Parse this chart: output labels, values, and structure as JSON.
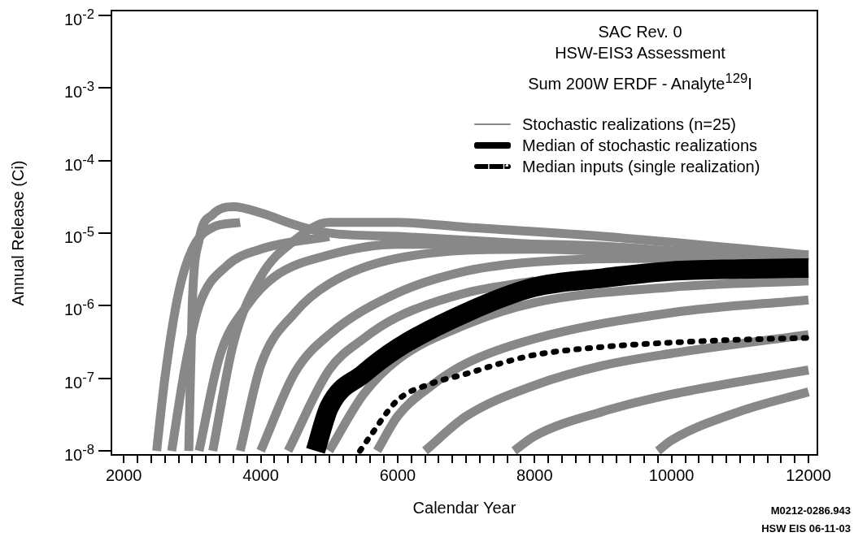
{
  "chart_data": {
    "type": "line",
    "title": "SAC Rev. 0",
    "subtitle": "HSW-EIS3 Assessment",
    "annotations": [
      "Sum 200W ERDF  - Analyte$^{129}$I",
      "M0212-0286.943",
      "HSW EIS 06-11-03"
    ],
    "xlabel": "Calendar Year",
    "ylabel": "Annual Release (Ci)",
    "log": "y",
    "legend": "top right",
    "marker": "none",
    "xlim": [
      1820,
      12130
    ],
    "ylim": [
      8.8e-09,
      0.0116
    ],
    "xticks": [
      2000,
      {
        "value": 2200,
        "label": null
      },
      {
        "value": 2400,
        "label": null
      },
      {
        "value": 2600,
        "label": null
      },
      {
        "value": 2800,
        "label": null
      },
      {
        "value": 3000,
        "label": null
      },
      {
        "value": 3200,
        "label": null
      },
      {
        "value": 3400,
        "label": null
      },
      {
        "value": 3600,
        "label": null
      },
      {
        "value": 3800,
        "label": null
      },
      4000,
      {
        "value": 4200,
        "label": null
      },
      {
        "value": 4400,
        "label": null
      },
      {
        "value": 4600,
        "label": null
      },
      {
        "value": 4800,
        "label": null
      },
      {
        "value": 5000,
        "label": null
      },
      {
        "value": 5200,
        "label": null
      },
      {
        "value": 5400,
        "label": null
      },
      {
        "value": 5600,
        "label": null
      },
      {
        "value": 5800,
        "label": null
      },
      6000,
      {
        "value": 6200,
        "label": null
      },
      {
        "value": 6400,
        "label": null
      },
      {
        "value": 6600,
        "label": null
      },
      {
        "value": 6800,
        "label": null
      },
      {
        "value": 7000,
        "label": null
      },
      {
        "value": 7200,
        "label": null
      },
      {
        "value": 7400,
        "label": null
      },
      {
        "value": 7600,
        "label": null
      },
      {
        "value": 7800,
        "label": null
      },
      8000,
      {
        "value": 8200,
        "label": null
      },
      {
        "value": 8400,
        "label": null
      },
      {
        "value": 8600,
        "label": null
      },
      {
        "value": 8800,
        "label": null
      },
      {
        "value": 9000,
        "label": null
      },
      {
        "value": 9200,
        "label": null
      },
      {
        "value": 9400,
        "label": null
      },
      {
        "value": 9600,
        "label": null
      },
      {
        "value": 9800,
        "label": null
      },
      10000,
      {
        "value": 10200,
        "label": null
      },
      {
        "value": 10400,
        "label": null
      },
      {
        "value": 10600,
        "label": null
      },
      {
        "value": 10800,
        "label": null
      },
      {
        "value": 11000,
        "label": null
      },
      {
        "value": 11200,
        "label": null
      },
      {
        "value": 11400,
        "label": null
      },
      {
        "value": 11600,
        "label": null
      },
      {
        "value": 11800,
        "label": null
      },
      12000
    ],
    "yticks": [
      {
        "value": 1e-08,
        "label": "10$^{-8}$"
      },
      {
        "value": 1e-07,
        "label": "10$^{-7}$"
      },
      {
        "value": 1e-06,
        "label": "10$^{-6}$"
      },
      {
        "value": 1e-05,
        "label": "10$^{-5}$"
      },
      {
        "value": 0.0001,
        "label": "10$^{-4}$"
      },
      {
        "value": 0.001,
        "label": "10$^{-3}$"
      },
      {
        "value": 0.01,
        "label": "10$^{-2}$"
      }
    ],
    "series": [
      {
        "name": "Stochastic realizations (n=25)",
        "color": "#888888",
        "x": [
          2950,
          3000,
          3100,
          3300,
          3600,
          4000,
          4500,
          5000,
          6000,
          8000,
          10000,
          12000
        ],
        "values": [
          1e-08,
          1e-06,
          8e-06,
          1.8e-05,
          2.3e-05,
          1.9e-05,
          1.3e-05,
          1e-05,
          9e-06,
          7e-06,
          5.5e-06,
          4.5e-06
        ]
      },
      {
        "color": "#888888",
        "x": [
          2480,
          2600,
          2800,
          3000,
          3300,
          3700
        ],
        "values": [
          1e-08,
          1e-07,
          1.5e-06,
          6e-06,
          1.2e-05,
          1.4e-05
        ]
      },
      {
        "color": "#888888",
        "x": [
          2700,
          2900,
          3100,
          3500,
          4000,
          5000
        ],
        "values": [
          1e-08,
          1.5e-07,
          1e-06,
          3.5e-06,
          6e-06,
          9e-06
        ]
      },
      {
        "color": "#888888",
        "x": [
          3300,
          3600,
          4000,
          4500,
          5000,
          6000,
          7000,
          9000,
          12000
        ],
        "values": [
          1e-08,
          3e-07,
          2.5e-06,
          8e-06,
          1.4e-05,
          1.4e-05,
          1.2e-05,
          9e-06,
          5e-06
        ]
      },
      {
        "color": "#888888",
        "x": [
          3100,
          3400,
          3800,
          4200,
          5000,
          6000,
          8000,
          12000
        ],
        "values": [
          1e-08,
          2e-07,
          1e-06,
          2.5e-06,
          5e-06,
          7e-06,
          7e-06,
          4e-06
        ]
      },
      {
        "color": "#888888",
        "x": [
          3700,
          4000,
          4500,
          5000,
          6000,
          8000,
          10000,
          12000
        ],
        "values": [
          1e-08,
          1.5e-07,
          8e-07,
          2e-06,
          4.5e-06,
          6e-06,
          5e-06,
          4e-06
        ]
      },
      {
        "color": "#888888",
        "x": [
          4000,
          4500,
          5000,
          6000,
          7000,
          8000,
          10000,
          12000
        ],
        "values": [
          1e-08,
          1.2e-07,
          4e-07,
          1.5e-06,
          3e-06,
          4e-06,
          4.5e-06,
          4e-06
        ]
      },
      {
        "color": "#888888",
        "x": [
          4400,
          5000,
          5500,
          6000,
          7000,
          8000
        ],
        "values": [
          1e-08,
          1.3e-07,
          3.5e-07,
          7e-07,
          1.5e-06,
          2.2e-06
        ]
      },
      {
        "color": "#888888",
        "x": [
          5000,
          5500,
          6000,
          7000,
          8000,
          10000,
          12000
        ],
        "values": [
          1e-08,
          6e-08,
          1.8e-07,
          5.5e-07,
          1.1e-06,
          1.8e-06,
          2.2e-06
        ]
      },
      {
        "color": "#888888",
        "x": [
          5700,
          6000,
          6500,
          7000,
          8000,
          10000,
          12000
        ],
        "values": [
          1e-08,
          3e-08,
          8e-08,
          1.6e-07,
          3.5e-07,
          8e-07,
          1.2e-06
        ]
      },
      {
        "color": "#888888",
        "x": [
          6400,
          7000,
          8000,
          9000,
          10000,
          12000
        ],
        "values": [
          1e-08,
          3e-08,
          8e-08,
          1.5e-07,
          2.2e-07,
          4e-07
        ]
      },
      {
        "color": "#888888",
        "x": [
          7700,
          8000,
          9000,
          10000,
          11000,
          12000
        ],
        "values": [
          1e-08,
          1.6e-08,
          3.5e-08,
          6e-08,
          9e-08,
          1.3e-07
        ]
      },
      {
        "color": "#888888",
        "x": [
          9800,
          10000,
          11000,
          12000
        ],
        "values": [
          1e-08,
          1.4e-08,
          3.5e-08,
          6.5e-08
        ]
      },
      {
        "name": "Median of stochastic realizations",
        "color": "#000000",
        "x": [
          4800,
          5000,
          5500,
          6000,
          7000,
          8000,
          9000,
          10000,
          11000,
          12000
        ],
        "values": [
          1e-08,
          4e-08,
          1.15e-07,
          2.6e-07,
          8e-07,
          1.8e-06,
          2.4e-06,
          3e-06,
          3.2e-06,
          3.3e-06
        ]
      },
      {
        "name": "Median inputs (single realization)",
        "color": "#000000",
        "line_style": "dotted",
        "x": [
          5450,
          5600,
          6000,
          6500,
          7000,
          7500,
          8000,
          9000,
          10000,
          11000,
          12000
        ],
        "values": [
          1e-08,
          1.6e-08,
          5e-08,
          8.5e-08,
          1.15e-07,
          1.6e-07,
          2.1e-07,
          2.7e-07,
          3.1e-07,
          3.4e-07,
          3.6e-07
        ]
      }
    ]
  }
}
